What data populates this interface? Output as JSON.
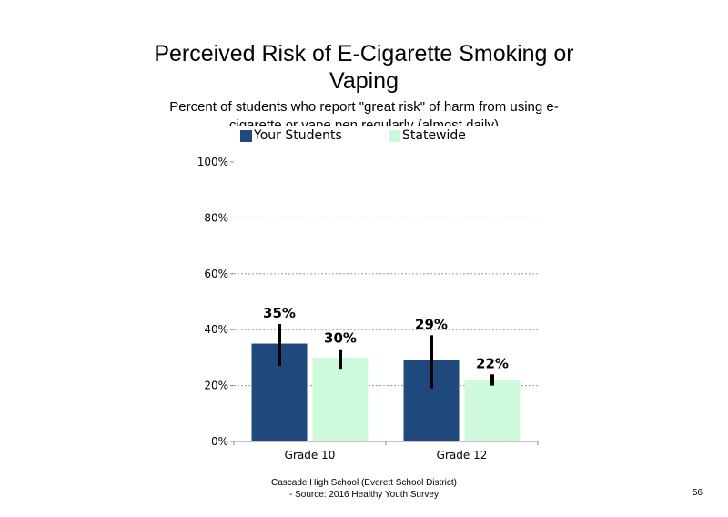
{
  "chart_data": {
    "type": "bar",
    "title": "Perceived Risk of E-Cigarette Smoking or Vaping",
    "subtitle": "Percent of students who report \"great risk\" of harm from using e-cigarette or vape pen regularly (almost daily)",
    "categories": [
      "Grade 10",
      "Grade 12"
    ],
    "series": [
      {
        "name": "Your Students",
        "values": [
          35,
          29
        ],
        "error_low": [
          27,
          19
        ],
        "error_high": [
          42,
          38
        ],
        "color": "#1f497d"
      },
      {
        "name": "Statewide",
        "values": [
          30,
          22
        ],
        "error_low": [
          26,
          20
        ],
        "error_high": [
          33,
          24
        ],
        "color": "#ccfadb"
      }
    ],
    "data_labels": [
      [
        "35%",
        "29%"
      ],
      [
        "30%",
        "22%"
      ]
    ],
    "y_ticks": [
      "0%",
      "20%",
      "40%",
      "60%",
      "80%",
      "100%"
    ],
    "y_tick_values": [
      0,
      20,
      40,
      60,
      80,
      100
    ],
    "ylim": [
      0,
      100
    ],
    "grid": "horizontal dotted",
    "legend_position": "top"
  },
  "footer": {
    "line1": "Cascade High School (Everett School District)",
    "line2": "- Source: 2016 Healthy Youth Survey",
    "page_number": "56"
  }
}
